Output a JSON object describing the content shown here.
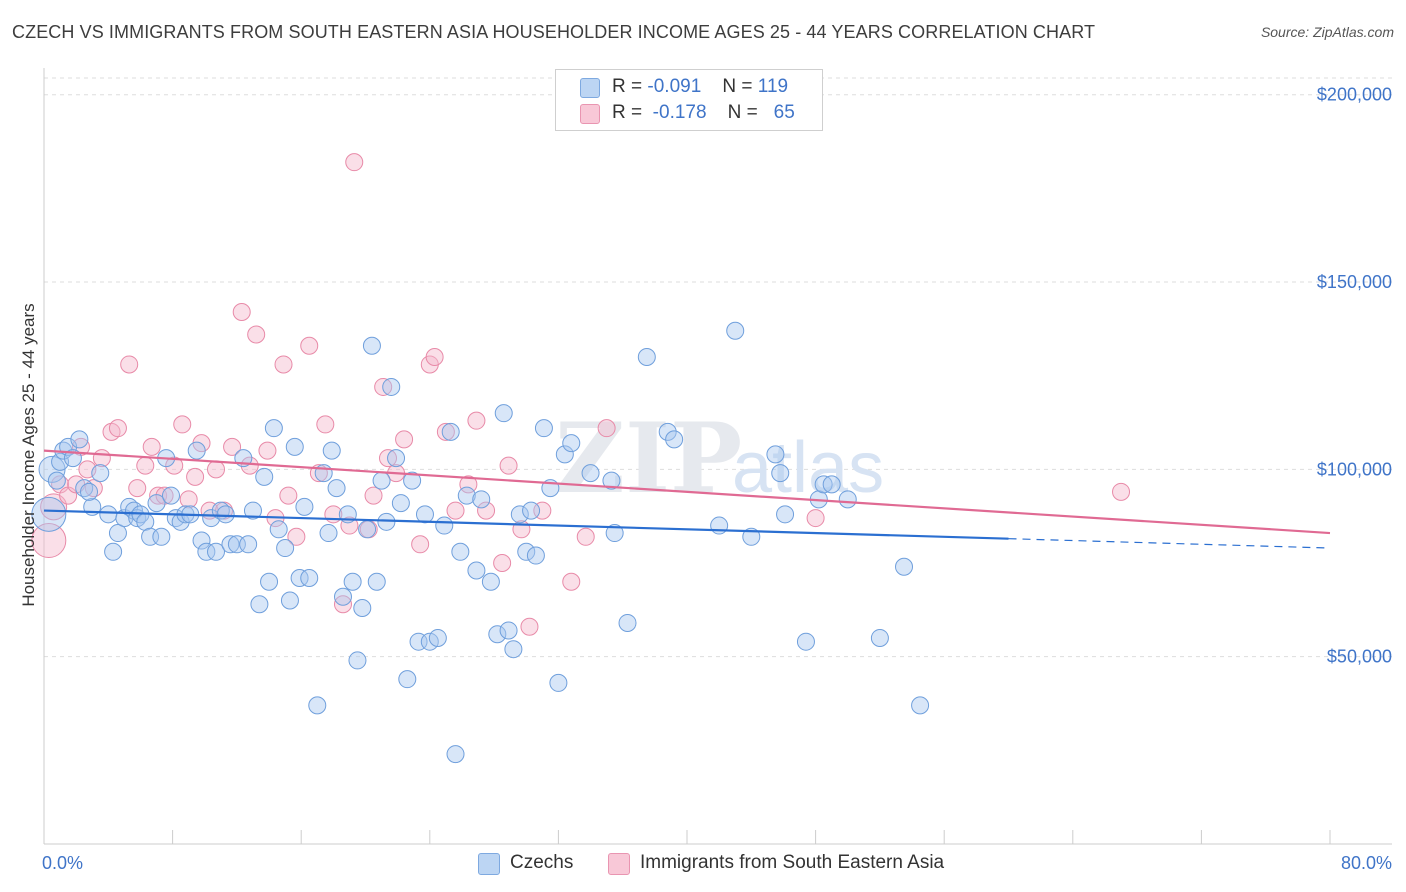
{
  "header": {
    "title": "CZECH VS IMMIGRANTS FROM SOUTH EASTERN ASIA HOUSEHOLDER INCOME AGES 25 - 44 YEARS CORRELATION CHART",
    "source": "Source: ZipAtlas.com"
  },
  "watermark": {
    "zip": "ZIP",
    "atlas": "atlas"
  },
  "legend": {
    "items": [
      {
        "r_label": "R =",
        "r_value": "-0.091",
        "n_label": "N =",
        "n_value": "119"
      },
      {
        "r_label": "R =",
        "r_value": "-0.178",
        "n_label": "N =",
        "n_value": "65"
      }
    ]
  },
  "bottom_legend": {
    "czechs": "Czechs",
    "immigrants": "Immigrants from South Eastern Asia"
  },
  "colors": {
    "czech_fill": "#a9c8ef",
    "czech_stroke": "#6f9fdc",
    "czech_line": "#2b6fd1",
    "imm_fill": "#f5b8cb",
    "imm_stroke": "#e88aa8",
    "imm_line": "#e06a93",
    "tick": "#3f74c8",
    "grid": "#dddddd"
  },
  "chart_data": {
    "type": "scatter",
    "title": "CZECH VS IMMIGRANTS FROM SOUTH EASTERN ASIA HOUSEHOLDER INCOME AGES 25 - 44 YEARS CORRELATION CHART",
    "xlabel": "",
    "ylabel": "Householder Income Ages 25 - 44 years",
    "xlim": [
      0,
      80
    ],
    "ylim": [
      0,
      205000
    ],
    "x_tick_labels": [
      "0.0%",
      "80.0%"
    ],
    "y_ticks": [
      50000,
      100000,
      150000,
      200000
    ],
    "y_tick_labels": [
      "$50,000",
      "$100,000",
      "$150,000",
      "$200,000"
    ],
    "grid": true,
    "legend_position": "top-center",
    "series": [
      {
        "name": "Czechs",
        "trend": {
          "x0": 0,
          "y0": 89000,
          "x1": 60,
          "y1": 81500,
          "dashed_to_x": 80,
          "dashed_to_y": 79000
        },
        "points": [
          [
            0.3,
            88000,
            3
          ],
          [
            0.5,
            100000,
            2
          ],
          [
            1.0,
            102000,
            1
          ],
          [
            1.2,
            105000,
            1
          ],
          [
            1.5,
            106000,
            1
          ],
          [
            1.8,
            103000,
            1
          ],
          [
            2.2,
            108000,
            1
          ],
          [
            2.5,
            95000,
            1
          ],
          [
            3.0,
            90000,
            1
          ],
          [
            3.5,
            99000,
            1
          ],
          [
            4.0,
            88000,
            1
          ],
          [
            4.3,
            78000,
            1
          ],
          [
            4.6,
            83000,
            1
          ],
          [
            5.0,
            87000,
            1
          ],
          [
            5.3,
            90000,
            1
          ],
          [
            5.6,
            89000,
            1
          ],
          [
            5.8,
            87000,
            1
          ],
          [
            6.0,
            88000,
            1
          ],
          [
            6.3,
            86000,
            1
          ],
          [
            6.6,
            82000,
            1
          ],
          [
            7.0,
            91000,
            1
          ],
          [
            7.3,
            82000,
            1
          ],
          [
            7.6,
            103000,
            1
          ],
          [
            7.9,
            93000,
            1
          ],
          [
            8.2,
            87000,
            1
          ],
          [
            8.5,
            86000,
            1
          ],
          [
            8.8,
            88000,
            1
          ],
          [
            9.1,
            88000,
            1
          ],
          [
            9.5,
            105000,
            1
          ],
          [
            9.8,
            81000,
            1
          ],
          [
            10.1,
            78000,
            1
          ],
          [
            10.4,
            87000,
            1
          ],
          [
            10.7,
            78000,
            1
          ],
          [
            11.0,
            89000,
            1
          ],
          [
            11.3,
            88000,
            1
          ],
          [
            11.6,
            80000,
            1
          ],
          [
            12.0,
            80000,
            1
          ],
          [
            12.4,
            103000,
            1
          ],
          [
            12.7,
            80000,
            1
          ],
          [
            13.0,
            89000,
            1
          ],
          [
            13.4,
            64000,
            1
          ],
          [
            13.7,
            98000,
            1
          ],
          [
            14.0,
            70000,
            1
          ],
          [
            14.3,
            111000,
            1
          ],
          [
            14.6,
            84000,
            1
          ],
          [
            15.0,
            79000,
            1
          ],
          [
            15.3,
            65000,
            1
          ],
          [
            15.6,
            106000,
            1
          ],
          [
            15.9,
            71000,
            1
          ],
          [
            16.2,
            90000,
            1
          ],
          [
            16.5,
            71000,
            1
          ],
          [
            17.0,
            37000,
            1
          ],
          [
            17.4,
            99000,
            1
          ],
          [
            17.7,
            83000,
            1
          ],
          [
            17.9,
            105000,
            1
          ],
          [
            18.2,
            95000,
            1
          ],
          [
            18.6,
            66000,
            1
          ],
          [
            18.9,
            88000,
            1
          ],
          [
            19.2,
            70000,
            1
          ],
          [
            19.5,
            49000,
            1
          ],
          [
            19.8,
            63000,
            1
          ],
          [
            20.1,
            84000,
            1
          ],
          [
            20.4,
            133000,
            1
          ],
          [
            20.7,
            70000,
            1
          ],
          [
            21.0,
            97000,
            1
          ],
          [
            21.3,
            86000,
            1
          ],
          [
            21.6,
            122000,
            1
          ],
          [
            21.9,
            103000,
            1
          ],
          [
            22.2,
            91000,
            1
          ],
          [
            22.6,
            44000,
            1
          ],
          [
            22.9,
            97000,
            1
          ],
          [
            23.3,
            54000,
            1
          ],
          [
            23.7,
            88000,
            1
          ],
          [
            24.0,
            54000,
            1
          ],
          [
            24.5,
            55000,
            1
          ],
          [
            24.9,
            85000,
            1
          ],
          [
            25.3,
            110000,
            1
          ],
          [
            25.6,
            24000,
            1
          ],
          [
            25.9,
            78000,
            1
          ],
          [
            26.3,
            93000,
            1
          ],
          [
            26.9,
            73000,
            1
          ],
          [
            27.2,
            92000,
            1
          ],
          [
            27.8,
            70000,
            1
          ],
          [
            28.2,
            56000,
            1
          ],
          [
            28.6,
            115000,
            1
          ],
          [
            28.9,
            57000,
            1
          ],
          [
            29.2,
            52000,
            1
          ],
          [
            29.6,
            88000,
            1
          ],
          [
            30.0,
            78000,
            1
          ],
          [
            30.3,
            89000,
            1
          ],
          [
            30.6,
            77000,
            1
          ],
          [
            31.1,
            111000,
            1
          ],
          [
            31.5,
            95000,
            1
          ],
          [
            32.0,
            43000,
            1
          ],
          [
            32.4,
            104000,
            1
          ],
          [
            32.8,
            107000,
            1
          ],
          [
            34.0,
            99000,
            1
          ],
          [
            35.3,
            97000,
            1
          ],
          [
            35.5,
            83000,
            1
          ],
          [
            36.3,
            59000,
            1
          ],
          [
            37.5,
            130000,
            1
          ],
          [
            38.8,
            110000,
            1
          ],
          [
            39.2,
            108000,
            1
          ],
          [
            42.0,
            85000,
            1
          ],
          [
            43.0,
            137000,
            1
          ],
          [
            44.0,
            82000,
            1
          ],
          [
            45.5,
            104000,
            1
          ],
          [
            45.8,
            99000,
            1
          ],
          [
            46.1,
            88000,
            1
          ],
          [
            47.4,
            54000,
            1
          ],
          [
            48.2,
            92000,
            1
          ],
          [
            48.5,
            96000,
            1
          ],
          [
            49.0,
            96000,
            1
          ],
          [
            50.0,
            92000,
            1
          ],
          [
            52.0,
            55000,
            1
          ],
          [
            53.5,
            74000,
            1
          ],
          [
            54.5,
            37000,
            1
          ],
          [
            0.8,
            97000,
            1
          ],
          [
            2.8,
            94000,
            1
          ]
        ]
      },
      {
        "name": "Immigrants from South Eastern Asia",
        "trend": {
          "x0": 0,
          "y0": 105000,
          "x1": 80,
          "y1": 83000
        },
        "points": [
          [
            0.3,
            81000,
            3
          ],
          [
            0.6,
            90000,
            2
          ],
          [
            1.0,
            96000,
            1
          ],
          [
            1.5,
            93000,
            1
          ],
          [
            2.0,
            96000,
            1
          ],
          [
            2.3,
            106000,
            1
          ],
          [
            2.7,
            100000,
            1
          ],
          [
            3.1,
            95000,
            1
          ],
          [
            3.6,
            103000,
            1
          ],
          [
            4.2,
            110000,
            1
          ],
          [
            4.6,
            111000,
            1
          ],
          [
            5.3,
            128000,
            1
          ],
          [
            5.8,
            95000,
            1
          ],
          [
            6.3,
            101000,
            1
          ],
          [
            6.7,
            106000,
            1
          ],
          [
            7.1,
            93000,
            1
          ],
          [
            7.5,
            93000,
            1
          ],
          [
            8.1,
            101000,
            1
          ],
          [
            8.6,
            112000,
            1
          ],
          [
            9.0,
            92000,
            1
          ],
          [
            9.4,
            98000,
            1
          ],
          [
            9.8,
            107000,
            1
          ],
          [
            10.3,
            89000,
            1
          ],
          [
            10.7,
            100000,
            1
          ],
          [
            11.2,
            89000,
            1
          ],
          [
            11.7,
            106000,
            1
          ],
          [
            12.3,
            142000,
            1
          ],
          [
            12.8,
            101000,
            1
          ],
          [
            13.2,
            136000,
            1
          ],
          [
            13.9,
            105000,
            1
          ],
          [
            14.4,
            87000,
            1
          ],
          [
            14.9,
            128000,
            1
          ],
          [
            15.2,
            93000,
            1
          ],
          [
            15.7,
            82000,
            1
          ],
          [
            16.5,
            133000,
            1
          ],
          [
            17.1,
            99000,
            1
          ],
          [
            17.5,
            112000,
            1
          ],
          [
            18.0,
            88000,
            1
          ],
          [
            18.6,
            64000,
            1
          ],
          [
            19.0,
            85000,
            1
          ],
          [
            19.3,
            182000,
            1
          ],
          [
            20.2,
            84000,
            1
          ],
          [
            20.5,
            93000,
            1
          ],
          [
            21.1,
            122000,
            1
          ],
          [
            21.4,
            103000,
            1
          ],
          [
            21.9,
            99000,
            1
          ],
          [
            22.4,
            108000,
            1
          ],
          [
            23.4,
            80000,
            1
          ],
          [
            24.0,
            128000,
            1
          ],
          [
            24.3,
            130000,
            1
          ],
          [
            25.0,
            110000,
            1
          ],
          [
            25.6,
            89000,
            1
          ],
          [
            26.4,
            96000,
            1
          ],
          [
            26.9,
            113000,
            1
          ],
          [
            27.5,
            89000,
            1
          ],
          [
            28.5,
            75000,
            1
          ],
          [
            28.9,
            101000,
            1
          ],
          [
            29.7,
            84000,
            1
          ],
          [
            30.2,
            58000,
            1
          ],
          [
            31.0,
            89000,
            1
          ],
          [
            32.8,
            70000,
            1
          ],
          [
            33.7,
            82000,
            1
          ],
          [
            35.0,
            111000,
            1
          ],
          [
            48.0,
            87000,
            1
          ],
          [
            67.0,
            94000,
            1
          ]
        ]
      }
    ]
  }
}
